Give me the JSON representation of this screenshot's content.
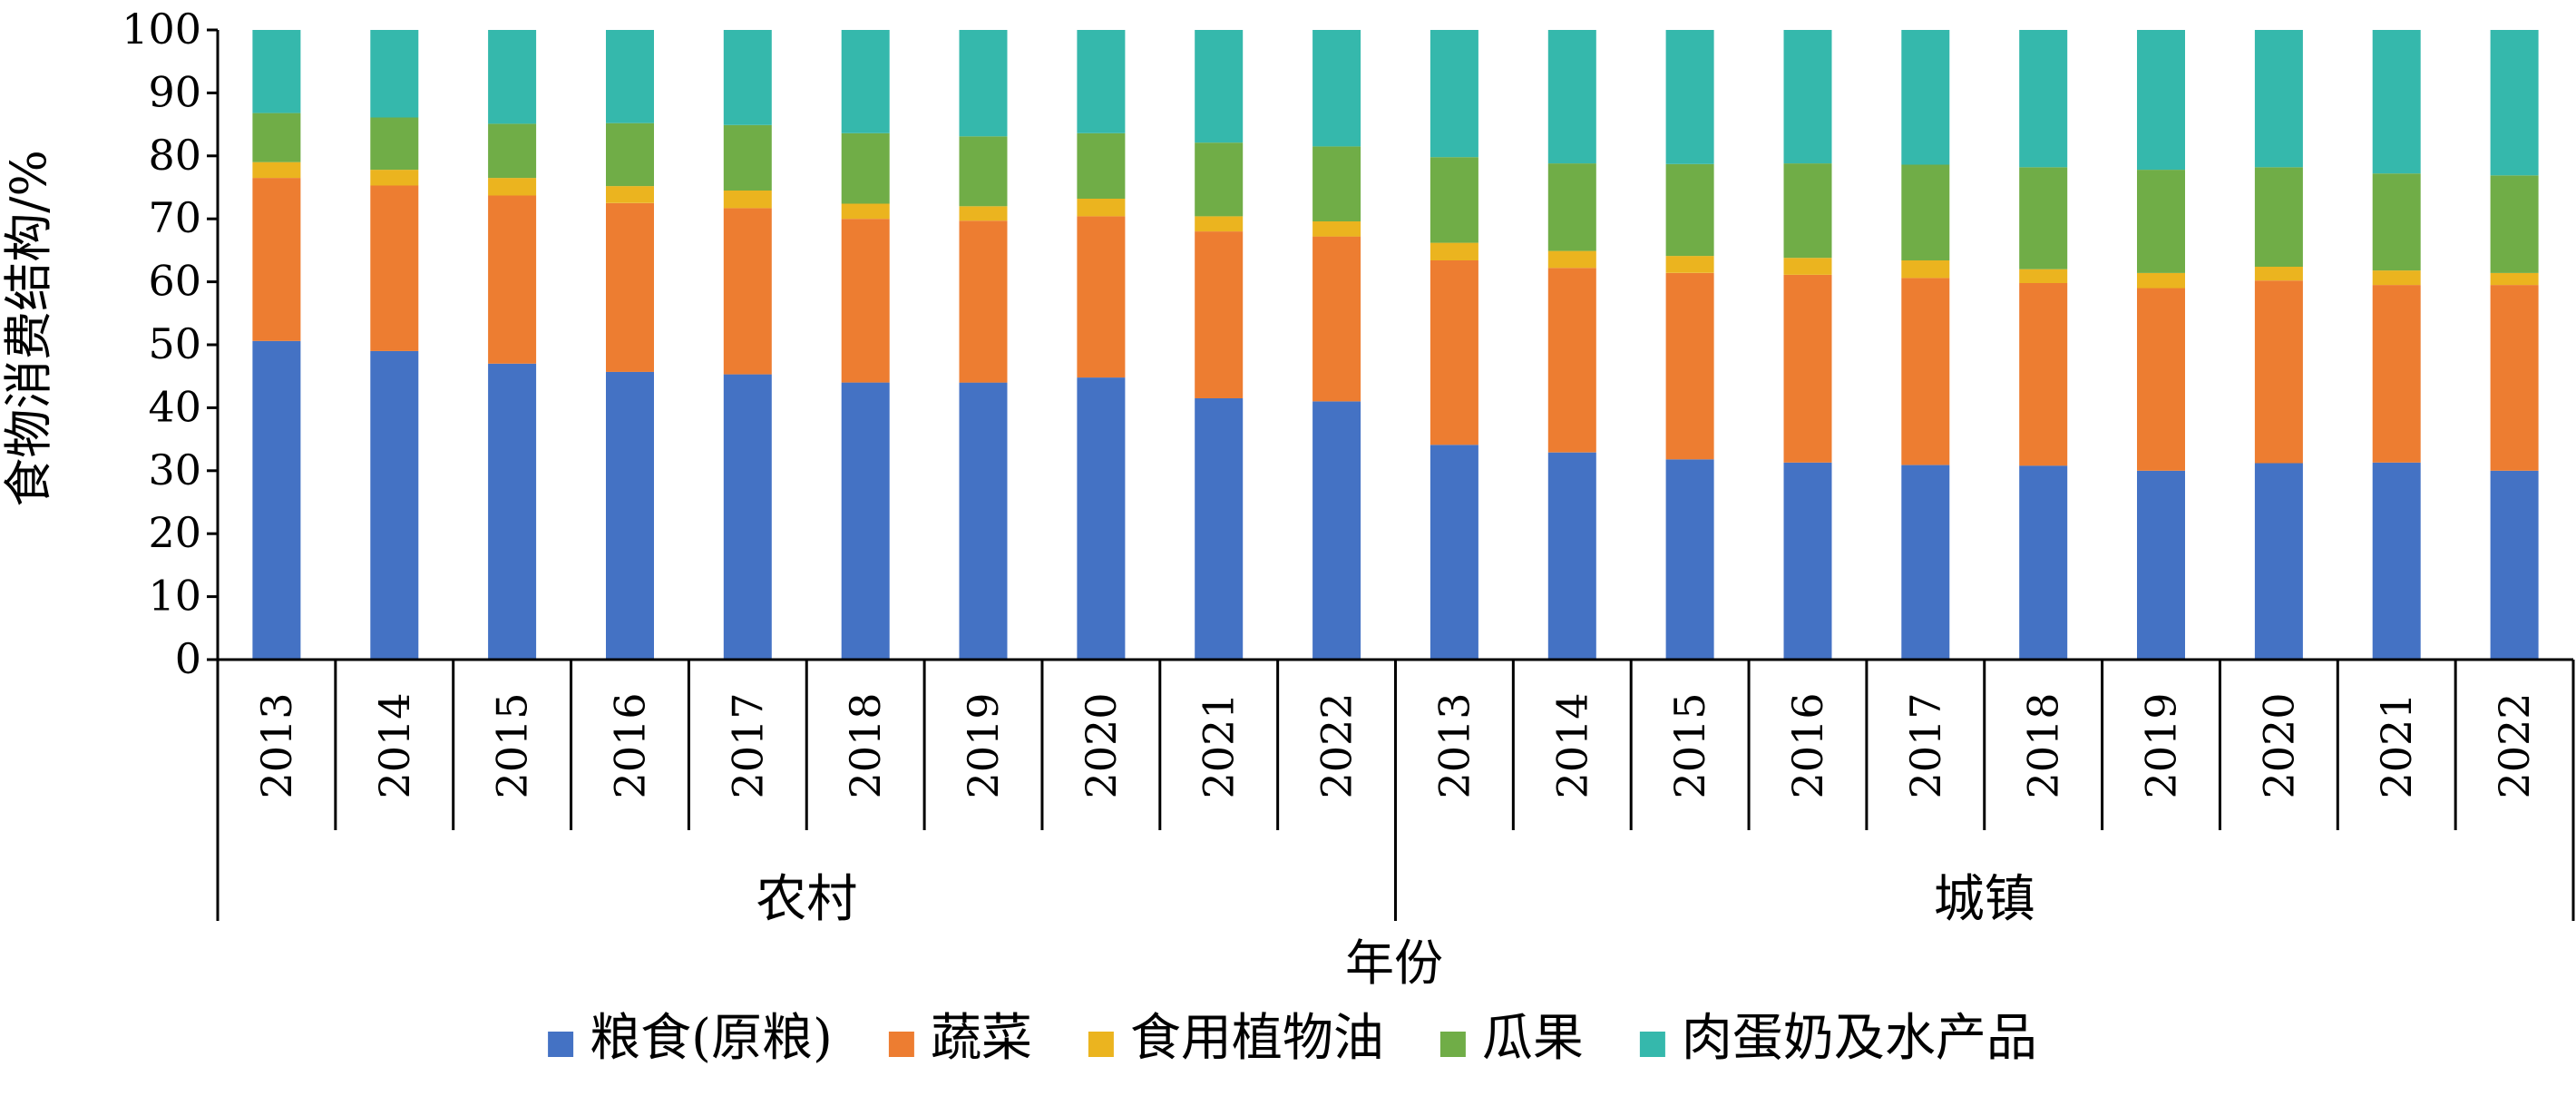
{
  "chart_data": {
    "type": "bar",
    "stacked": true,
    "ylabel": "食物消费结构/%",
    "xlabel": "年份",
    "ylim": [
      0,
      100
    ],
    "yticks": [
      0,
      10,
      20,
      30,
      40,
      50,
      60,
      70,
      80,
      90,
      100
    ],
    "groups": [
      {
        "label": "农村",
        "years": [
          "2013",
          "2014",
          "2015",
          "2016",
          "2017",
          "2018",
          "2019",
          "2020",
          "2021",
          "2022"
        ]
      },
      {
        "label": "城镇",
        "years": [
          "2013",
          "2014",
          "2015",
          "2016",
          "2017",
          "2018",
          "2019",
          "2020",
          "2021",
          "2022"
        ]
      }
    ],
    "series": [
      {
        "name": "粮食(原粮)",
        "color": "#4472C4",
        "values": [
          50.6,
          49.0,
          47.0,
          45.7,
          45.3,
          44.0,
          44.0,
          44.8,
          41.5,
          41.0,
          34.1,
          32.9,
          31.8,
          31.3,
          30.9,
          30.8,
          30.0,
          31.2,
          31.3,
          30.0
        ]
      },
      {
        "name": "蔬菜",
        "color": "#ED7D31",
        "values": [
          25.9,
          26.3,
          26.7,
          26.8,
          26.4,
          26.0,
          25.7,
          25.6,
          26.5,
          26.2,
          29.3,
          29.3,
          29.6,
          29.8,
          29.7,
          29.0,
          29.0,
          29.0,
          28.2,
          29.5
        ]
      },
      {
        "name": "食用植物油",
        "color": "#EBB41F",
        "values": [
          2.5,
          2.5,
          2.8,
          2.7,
          2.8,
          2.4,
          2.3,
          2.8,
          2.4,
          2.4,
          2.8,
          2.7,
          2.7,
          2.7,
          2.8,
          2.2,
          2.4,
          2.2,
          2.3,
          1.9
        ]
      },
      {
        "name": "瓜果",
        "color": "#70AD47",
        "values": [
          7.8,
          8.3,
          8.6,
          10.0,
          10.4,
          11.2,
          11.1,
          10.4,
          11.7,
          11.9,
          13.6,
          13.9,
          14.6,
          15.0,
          15.2,
          16.2,
          16.4,
          15.8,
          15.4,
          15.5
        ]
      },
      {
        "name": "肉蛋奶及水产品",
        "color": "#35B8AC",
        "values": [
          13.2,
          13.9,
          14.9,
          14.8,
          15.1,
          16.4,
          16.9,
          16.4,
          17.9,
          18.5,
          20.2,
          21.2,
          21.3,
          21.2,
          21.4,
          21.8,
          22.2,
          21.8,
          22.8,
          23.1
        ]
      }
    ]
  }
}
